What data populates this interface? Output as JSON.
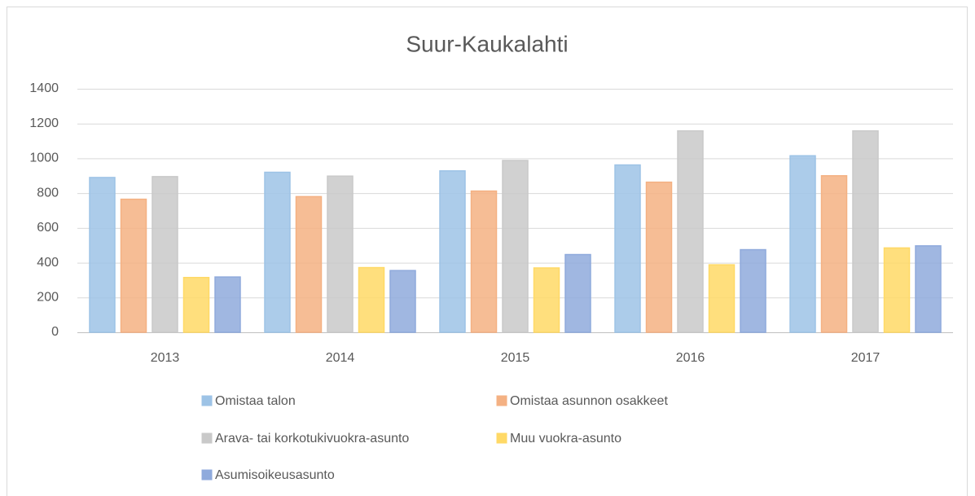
{
  "chart_data": {
    "type": "bar",
    "title": "Suur-Kaukalahti",
    "categories": [
      "2013",
      "2014",
      "2015",
      "2016",
      "2017"
    ],
    "series": [
      {
        "name": "Omistaa talon",
        "color": "#9dc3e6",
        "values": [
          890,
          920,
          928,
          962,
          1015
        ]
      },
      {
        "name": "Omistaa asunnon osakkeet",
        "color": "#f4b183",
        "values": [
          765,
          780,
          812,
          863,
          900
        ]
      },
      {
        "name": "Arava- tai korkotukivuokra-asunto",
        "color": "#c9c9c9",
        "values": [
          895,
          898,
          988,
          1158,
          1158
        ]
      },
      {
        "name": "Muu vuokra-asunto",
        "color": "#ffd966",
        "values": [
          315,
          372,
          370,
          388,
          485
        ]
      },
      {
        "name": "Asumisoikeusasunto",
        "color": "#8faadc",
        "values": [
          318,
          355,
          447,
          475,
          497
        ]
      }
    ],
    "ylim": [
      0,
      1400
    ],
    "yticks": [
      0,
      200,
      400,
      600,
      800,
      1000,
      1200,
      1400
    ],
    "grid": true
  }
}
